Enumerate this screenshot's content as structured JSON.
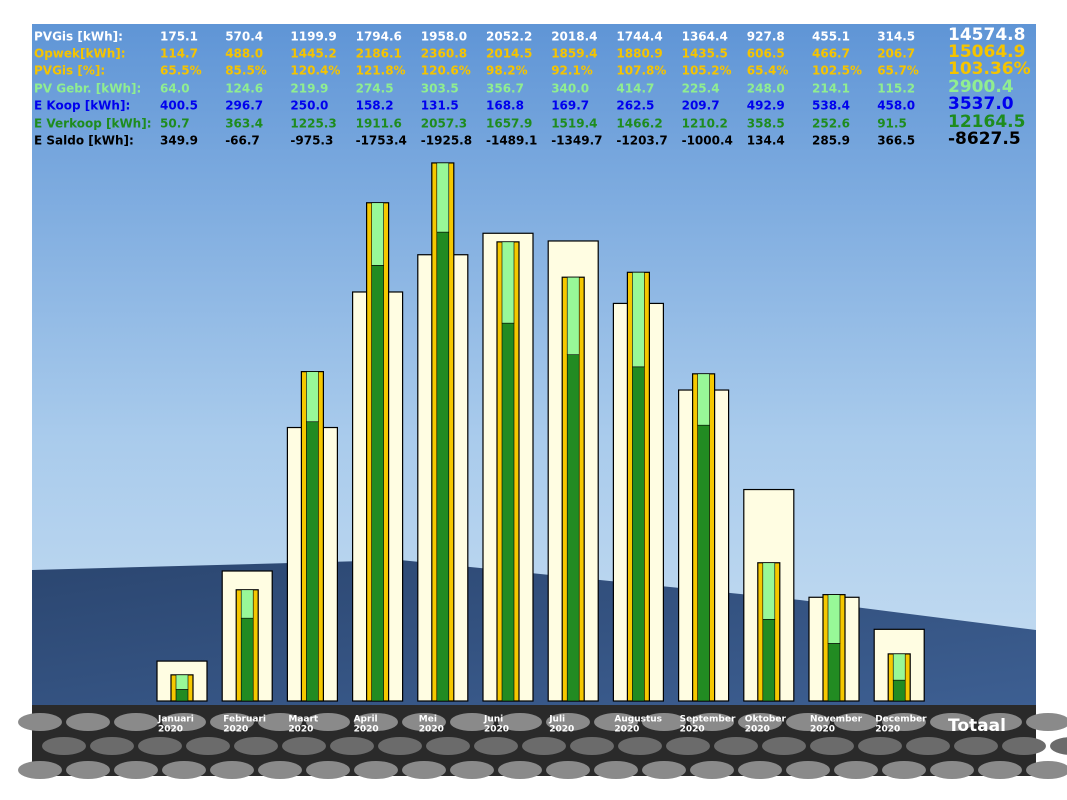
{
  "chart_data": {
    "type": "bar",
    "categories": [
      "Januari",
      "Februari",
      "Maart",
      "April",
      "Mei",
      "Juni",
      "Juli",
      "Augustus",
      "September",
      "Oktober",
      "November",
      "December"
    ],
    "category_sublabels": [
      "2020",
      "2020",
      "2020",
      "2020",
      "2020",
      "2020",
      "2020",
      "2020",
      "2020",
      "2020",
      "2020",
      "2020"
    ],
    "total_heading": "Totaal",
    "ylim": [
      0,
      2400
    ],
    "series": [
      {
        "name": "PVGis [kWh]:",
        "color": "#ffffff",
        "bar": "outer",
        "bar_color": "#fffde2",
        "values": [
          175.1,
          570.4,
          1199.9,
          1794.6,
          1958.0,
          2052.2,
          2018.4,
          1744.4,
          1364.4,
          927.8,
          455.1,
          314.5
        ],
        "value_labels": [
          "175.1",
          "570.4",
          "1199.9",
          "1794.6",
          "1958.0",
          "2052.2",
          "2018.4",
          "1744.4",
          "1364.4",
          "927.8",
          "455.1",
          "314.5"
        ],
        "total": "14574.8"
      },
      {
        "name": "Opwek[kWh]:",
        "color": "#f5c400",
        "bar": "inner",
        "bar_color": "#f5c800",
        "values": [
          114.7,
          488.0,
          1445.2,
          2186.1,
          2360.8,
          2014.5,
          1859.4,
          1880.9,
          1435.5,
          606.5,
          466.7,
          206.7
        ],
        "value_labels": [
          "114.7",
          "488.0",
          "1445.2",
          "2186.1",
          "2360.8",
          "2014.5",
          "1859.4",
          "1880.9",
          "1435.5",
          "606.5",
          "466.7",
          "206.7"
        ],
        "total": "15064.9"
      },
      {
        "name": "PVGis [%]:",
        "color": "#f5c400",
        "values": [
          65.5,
          85.5,
          120.4,
          121.8,
          120.6,
          98.2,
          92.1,
          107.8,
          105.2,
          65.4,
          102.5,
          65.7
        ],
        "value_labels": [
          "65.5%",
          "85.5%",
          "120.4%",
          "121.8%",
          "120.6%",
          "98.2%",
          "92.1%",
          "107.8%",
          "105.2%",
          "65.4%",
          "102.5%",
          "65.7%"
        ],
        "total": "103.36%"
      },
      {
        "name": "PV Gebr. [kWh]:",
        "color": "#90ee90",
        "bar": "stack",
        "stack": 1,
        "bar_color": "#98f898",
        "values": [
          64.0,
          124.6,
          219.9,
          274.5,
          303.5,
          356.7,
          340.0,
          414.7,
          225.4,
          248.0,
          214.1,
          115.2
        ],
        "value_labels": [
          "64.0",
          "124.6",
          "219.9",
          "274.5",
          "303.5",
          "356.7",
          "340.0",
          "414.7",
          "225.4",
          "248.0",
          "214.1",
          "115.2"
        ],
        "total": "2900.4"
      },
      {
        "name": "E Koop [kWh]:",
        "color": "#0000ee",
        "values": [
          400.5,
          296.7,
          250.0,
          158.2,
          131.5,
          168.8,
          169.7,
          262.5,
          209.7,
          492.9,
          538.4,
          458.0
        ],
        "value_labels": [
          "400.5",
          "296.7",
          "250.0",
          "158.2",
          "131.5",
          "168.8",
          "169.7",
          "262.5",
          "209.7",
          "492.9",
          "538.4",
          "458.0"
        ],
        "total": "3537.0"
      },
      {
        "name": "E Verkoop [kWh]:",
        "color": "#1e8c1e",
        "bar": "stack",
        "stack": 0,
        "bar_color": "#228b22",
        "values": [
          50.7,
          363.4,
          1225.3,
          1911.6,
          2057.3,
          1657.9,
          1519.4,
          1466.2,
          1210.2,
          358.5,
          252.6,
          91.5
        ],
        "value_labels": [
          "50.7",
          "363.4",
          "1225.3",
          "1911.6",
          "2057.3",
          "1657.9",
          "1519.4",
          "1466.2",
          "1210.2",
          "358.5",
          "252.6",
          "91.5"
        ],
        "total": "12164.5"
      },
      {
        "name": "E Saldo [kWh]:",
        "color": "#000000",
        "values": [
          349.9,
          -66.7,
          -975.3,
          -1753.4,
          -1925.8,
          -1489.1,
          -1349.7,
          -1203.7,
          -1000.4,
          134.4,
          285.9,
          366.5
        ],
        "value_labels": [
          "349.9",
          "-66.7",
          "-975.3",
          "-1753.4",
          "-1925.8",
          "-1489.1",
          "-1349.7",
          "-1203.7",
          "-1000.4",
          "134.4",
          "285.9",
          "366.5"
        ],
        "total": "-8627.5"
      }
    ]
  }
}
